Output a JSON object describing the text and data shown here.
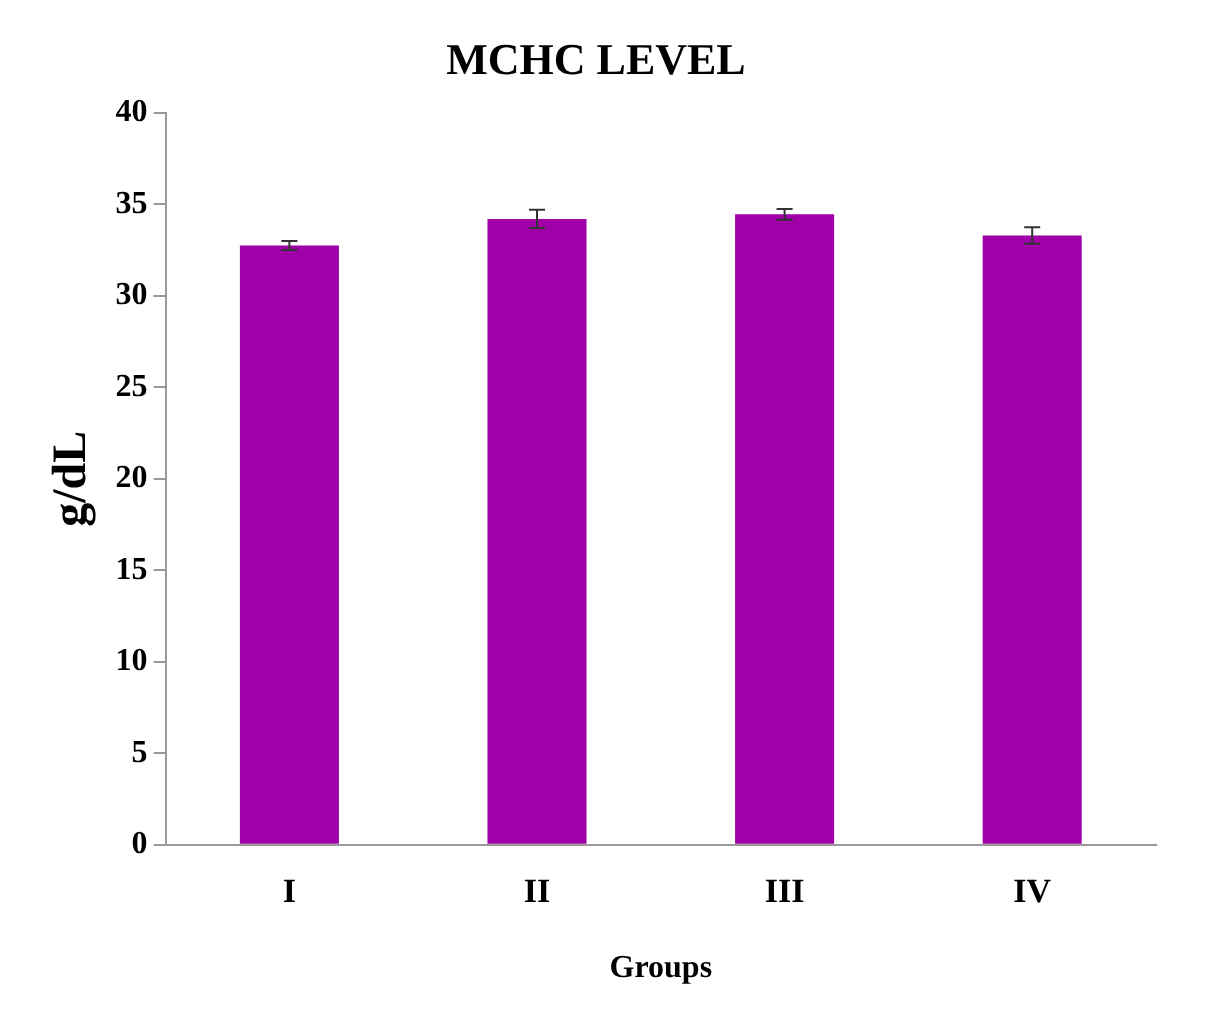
{
  "chart_data": {
    "type": "bar",
    "title": "MCHC LEVEL",
    "xlabel": "Groups",
    "ylabel": "g/dL",
    "categories": [
      "I",
      "II",
      "III",
      "IV"
    ],
    "values": [
      32.75,
      34.2,
      34.45,
      33.3
    ],
    "errors": [
      0.25,
      0.5,
      0.3,
      0.45
    ],
    "color": "#a000a8",
    "ylim": [
      0,
      40
    ],
    "yticks": [
      0,
      5,
      10,
      15,
      20,
      25,
      30,
      35,
      40
    ],
    "grid": false,
    "legend": false
  }
}
